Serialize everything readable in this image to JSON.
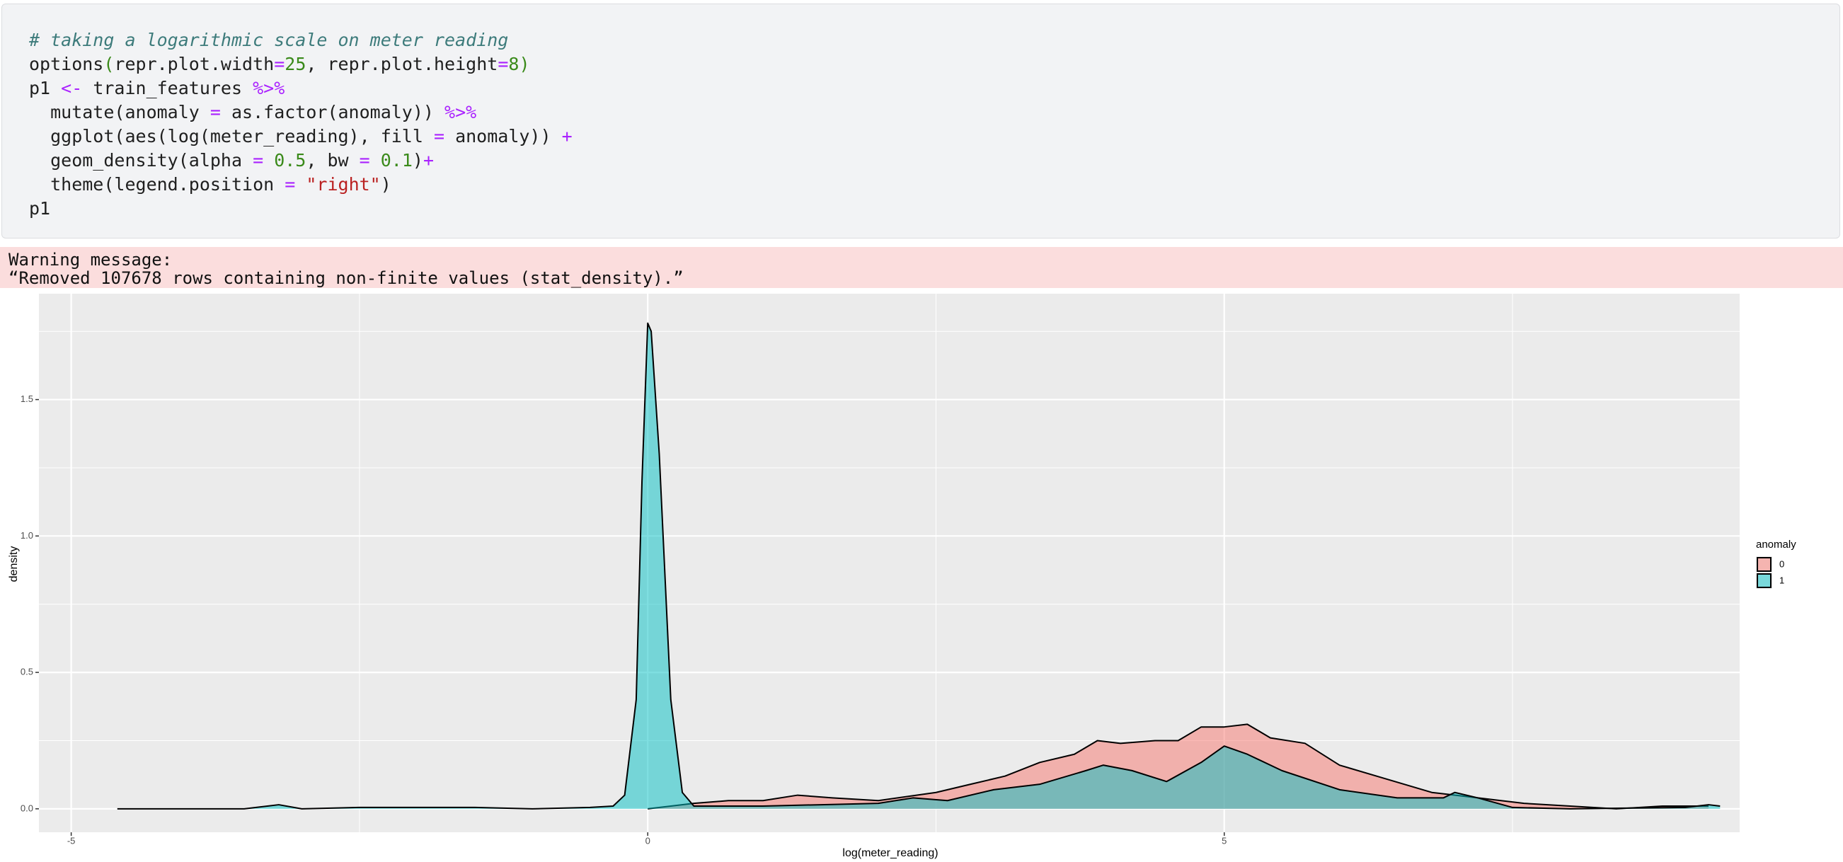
{
  "code": {
    "lines": [
      [
        {
          "text": "# taking a logarithmic scale on meter reading",
          "color": "#3d7b7b"
        }
      ],
      [
        {
          "text": "options",
          "color": "#1f1f1f"
        },
        {
          "text": "(",
          "color": "#3a8a1a"
        },
        {
          "text": "repr.plot.width",
          "color": "#1f1f1f"
        },
        {
          "text": "=",
          "color": "#aa22ff"
        },
        {
          "text": "25",
          "color": "#3a8a1a"
        },
        {
          "text": ", repr.plot.height",
          "color": "#1f1f1f"
        },
        {
          "text": "=",
          "color": "#aa22ff"
        },
        {
          "text": "8",
          "color": "#3a8a1a"
        },
        {
          "text": ")",
          "color": "#3a8a1a"
        }
      ],
      [
        {
          "text": "p1 ",
          "color": "#1f1f1f"
        },
        {
          "text": "<-",
          "color": "#aa22ff"
        },
        {
          "text": " train_features ",
          "color": "#1f1f1f"
        },
        {
          "text": "%>%",
          "color": "#aa22ff"
        }
      ],
      [
        {
          "text": "  mutate(anomaly ",
          "color": "#1f1f1f"
        },
        {
          "text": "=",
          "color": "#aa22ff"
        },
        {
          "text": " as.factor(anomaly)) ",
          "color": "#1f1f1f"
        },
        {
          "text": "%>%",
          "color": "#aa22ff"
        }
      ],
      [
        {
          "text": "  ggplot(aes(log(meter_reading), fill ",
          "color": "#1f1f1f"
        },
        {
          "text": "=",
          "color": "#aa22ff"
        },
        {
          "text": " anomaly)) ",
          "color": "#1f1f1f"
        },
        {
          "text": "+",
          "color": "#aa22ff"
        }
      ],
      [
        {
          "text": "  geom_density(alpha ",
          "color": "#1f1f1f"
        },
        {
          "text": "=",
          "color": "#aa22ff"
        },
        {
          "text": " ",
          "color": "#1f1f1f"
        },
        {
          "text": "0.5",
          "color": "#3a8a1a"
        },
        {
          "text": ", bw ",
          "color": "#1f1f1f"
        },
        {
          "text": "=",
          "color": "#aa22ff"
        },
        {
          "text": " ",
          "color": "#1f1f1f"
        },
        {
          "text": "0.1",
          "color": "#3a8a1a"
        },
        {
          "text": ")",
          "color": "#1f1f1f"
        },
        {
          "text": "+",
          "color": "#aa22ff"
        }
      ],
      [
        {
          "text": "  theme(legend.position ",
          "color": "#1f1f1f"
        },
        {
          "text": "=",
          "color": "#aa22ff"
        },
        {
          "text": " ",
          "color": "#1f1f1f"
        },
        {
          "text": "\"right\"",
          "color": "#ba2121"
        },
        {
          "text": ")",
          "color": "#1f1f1f"
        }
      ],
      [
        {
          "text": "p1",
          "color": "#1f1f1f"
        }
      ]
    ]
  },
  "warning": {
    "lines": [
      "Warning message:",
      "“Removed 107678 rows containing non-finite values (stat_density).”"
    ]
  },
  "chart_data": {
    "type": "density",
    "x_label": "log(meter_reading)",
    "y_label": "density",
    "legend_title": "anomaly",
    "legend_position": "right",
    "alpha": 0.5,
    "xlim": [
      -5.28,
      9.47
    ],
    "ylim": [
      -0.086,
      1.888
    ],
    "xticks": [
      -5,
      0,
      5
    ],
    "yticks": [
      {
        "value": 0,
        "label": "0.0"
      },
      0.5,
      {
        "value": 1,
        "label": "1.0"
      },
      1.5
    ],
    "x_minor_ticks": [
      -2.5,
      2.5,
      7.5
    ],
    "y_minor_ticks": [
      0.25,
      0.75,
      1.25,
      1.75
    ],
    "grid": true,
    "series": [
      {
        "name": "0",
        "color": "#F8766D",
        "x": [
          0.0,
          0.2,
          0.4,
          0.7,
          1.0,
          1.3,
          1.6,
          2.0,
          2.5,
          2.8,
          3.1,
          3.4,
          3.7,
          3.9,
          4.1,
          4.4,
          4.6,
          4.8,
          5.0,
          5.2,
          5.4,
          5.7,
          6.0,
          6.4,
          6.8,
          7.2,
          7.6,
          8.0,
          8.4,
          8.8,
          9.2
        ],
        "values": [
          0.0,
          0.01,
          0.02,
          0.03,
          0.03,
          0.05,
          0.04,
          0.03,
          0.06,
          0.09,
          0.12,
          0.17,
          0.2,
          0.25,
          0.24,
          0.25,
          0.25,
          0.3,
          0.3,
          0.31,
          0.26,
          0.24,
          0.16,
          0.11,
          0.06,
          0.04,
          0.02,
          0.01,
          0.0,
          0.01,
          0.01
        ]
      },
      {
        "name": "1",
        "color": "#00BFC4",
        "x": [
          -4.6,
          -3.5,
          -3.2,
          -3.0,
          -2.5,
          -2.0,
          -1.5,
          -1.0,
          -0.5,
          -0.3,
          -0.2,
          -0.1,
          -0.05,
          0.0,
          0.03,
          0.1,
          0.2,
          0.3,
          0.4,
          1.0,
          1.5,
          2.0,
          2.3,
          2.6,
          3.0,
          3.4,
          3.8,
          3.95,
          4.2,
          4.5,
          4.8,
          5.0,
          5.2,
          5.5,
          6.0,
          6.5,
          6.9,
          7.0,
          7.2,
          7.5,
          8.0,
          9.0,
          9.2,
          9.3
        ],
        "values": [
          0.0,
          0.0,
          0.015,
          0.0,
          0.005,
          0.005,
          0.005,
          0.0,
          0.005,
          0.01,
          0.05,
          0.4,
          1.2,
          1.78,
          1.75,
          1.3,
          0.4,
          0.06,
          0.01,
          0.01,
          0.015,
          0.02,
          0.04,
          0.03,
          0.07,
          0.09,
          0.14,
          0.16,
          0.14,
          0.1,
          0.17,
          0.23,
          0.2,
          0.14,
          0.07,
          0.04,
          0.04,
          0.06,
          0.04,
          0.005,
          0.0,
          0.005,
          0.015,
          0.01
        ]
      }
    ]
  }
}
